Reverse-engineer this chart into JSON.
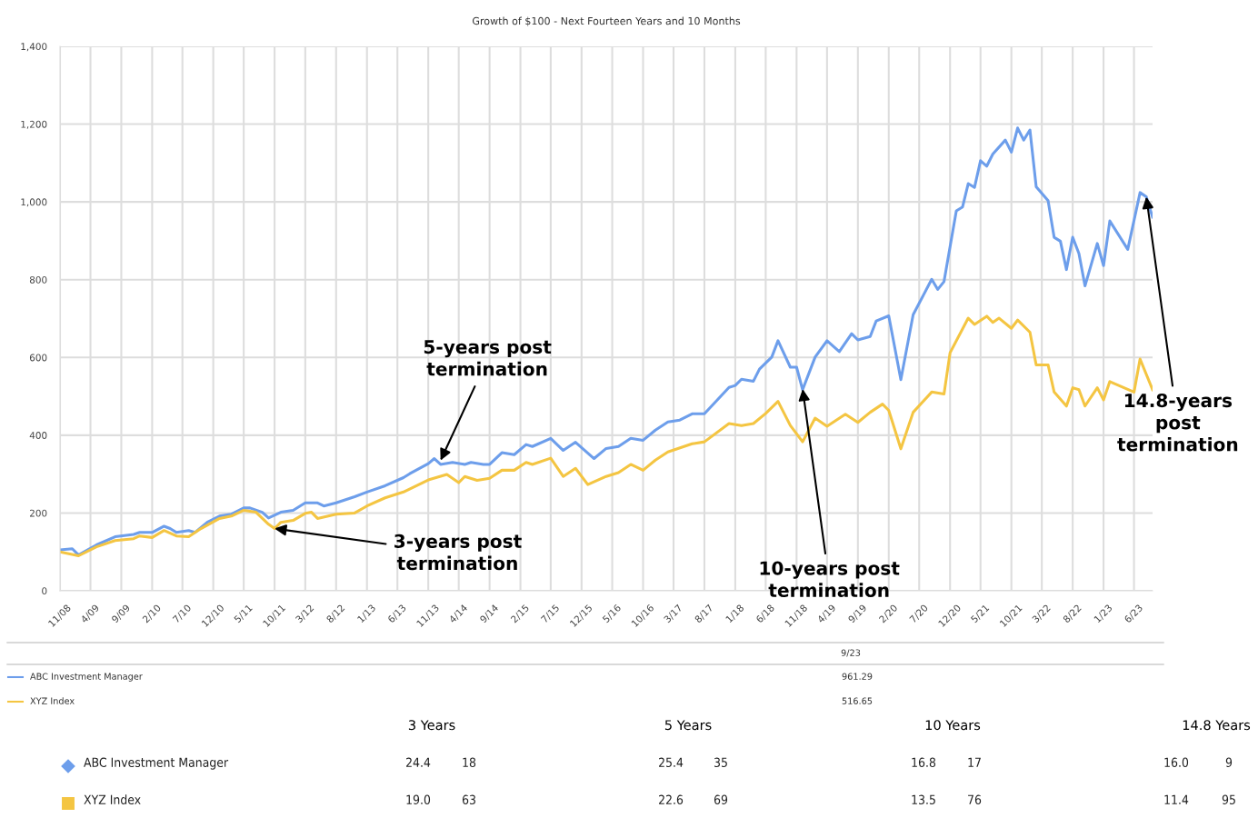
{
  "chart_data": {
    "type": "line",
    "title": "Growth of $100 - Next Fourteen Years and 10 Months",
    "series": [
      {
        "name": "ABC Investment Manager",
        "color": "#6d9eeb",
        "x": [
          "2008-11",
          "2009-01",
          "2009-02",
          "2009-05",
          "2009-08",
          "2009-11",
          "2009-12",
          "2010-02",
          "2010-04",
          "2010-05",
          "2010-06",
          "2010-08",
          "2010-09",
          "2010-11",
          "2011-01",
          "2011-03",
          "2011-05",
          "2011-06",
          "2011-08",
          "2011-09",
          "2011-11",
          "2012-01",
          "2012-03",
          "2012-05",
          "2012-06",
          "2012-08",
          "2012-11",
          "2013-01",
          "2013-04",
          "2013-07",
          "2013-08",
          "2013-11",
          "2013-12",
          "2014-01",
          "2014-03",
          "2014-05",
          "2014-06",
          "2014-08",
          "2014-09",
          "2014-11",
          "2015-01",
          "2015-03",
          "2015-04",
          "2015-07",
          "2015-09",
          "2015-11",
          "2016-02",
          "2016-04",
          "2016-06",
          "2016-08",
          "2016-10",
          "2016-12",
          "2017-02",
          "2017-04",
          "2017-06",
          "2017-08",
          "2017-12",
          "2018-01",
          "2018-02",
          "2018-04",
          "2018-05",
          "2018-07",
          "2018-08",
          "2018-10",
          "2018-11",
          "2018-12",
          "2019-02",
          "2019-04",
          "2019-06",
          "2019-08",
          "2019-09",
          "2019-11",
          "2019-12",
          "2020-02",
          "2020-04",
          "2020-06",
          "2020-09",
          "2020-10",
          "2020-11",
          "2021-01",
          "2021-02",
          "2021-03",
          "2021-04",
          "2021-05",
          "2021-06",
          "2021-07",
          "2021-09",
          "2021-10",
          "2021-11",
          "2021-12",
          "2022-01",
          "2022-02",
          "2022-04",
          "2022-05",
          "2022-06",
          "2022-07",
          "2022-08",
          "2022-09",
          "2022-10",
          "2022-12",
          "2023-01",
          "2023-02",
          "2023-05",
          "2023-07",
          "2023-08",
          "2023-09"
        ],
        "values": [
          105,
          108,
          92,
          118,
          139,
          145,
          150,
          150,
          166,
          160,
          150,
          155,
          150,
          176,
          192,
          197,
          213,
          213,
          202,
          187,
          202,
          207,
          226,
          226,
          218,
          226,
          242,
          254,
          270,
          291,
          301,
          327,
          340,
          325,
          330,
          325,
          330,
          325,
          325,
          355,
          350,
          376,
          371,
          392,
          361,
          382,
          340,
          366,
          371,
          392,
          387,
          413,
          434,
          439,
          455,
          455,
          523,
          528,
          544,
          539,
          570,
          601,
          643,
          575,
          575,
          517,
          601,
          643,
          615,
          661,
          645,
          654,
          694,
          707,
          543,
          710,
          801,
          775,
          795,
          977,
          987,
          1047,
          1037,
          1106,
          1092,
          1123,
          1159,
          1128,
          1190,
          1159,
          1185,
          1039,
          1003,
          909,
          899,
          826,
          909,
          867,
          784,
          893,
          836,
          951,
          878,
          1024,
          1013,
          961
        ],
        "value_labels": [
          null,
          null,
          null,
          null,
          null,
          null,
          null,
          null,
          null,
          null,
          null,
          null,
          null,
          null,
          null,
          null,
          null,
          null,
          null,
          null,
          null,
          null,
          null,
          null,
          null,
          null,
          null,
          null,
          null,
          null,
          null,
          null,
          null,
          null,
          null,
          null,
          null,
          null,
          null,
          null,
          null,
          null,
          null,
          null,
          null,
          null,
          null,
          null,
          null,
          null,
          null,
          null,
          null,
          null,
          null,
          null,
          null,
          null,
          null,
          null,
          null,
          null,
          null,
          null,
          null,
          null,
          null,
          null,
          null,
          null,
          null,
          null,
          null,
          null,
          null,
          null,
          null,
          null,
          null,
          null,
          null,
          null,
          null,
          null,
          null,
          null,
          null,
          null,
          null,
          null,
          null,
          null,
          null,
          null,
          null,
          null,
          null,
          null,
          null,
          null,
          null,
          null,
          null,
          null,
          null,
          null
        ]
      },
      {
        "name": "XYZ Index",
        "color": "#f4c542",
        "x": [
          "2008-11",
          "2009-02",
          "2009-05",
          "2009-08",
          "2009-11",
          "2009-12",
          "2010-02",
          "2010-04",
          "2010-06",
          "2010-08",
          "2010-10",
          "2011-01",
          "2011-03",
          "2011-05",
          "2011-07",
          "2011-09",
          "2011-10",
          "2011-11",
          "2012-01",
          "2012-03",
          "2012-04",
          "2012-05",
          "2012-08",
          "2012-11",
          "2013-01",
          "2013-04",
          "2013-07",
          "2013-11",
          "2014-02",
          "2014-04",
          "2014-05",
          "2014-07",
          "2014-09",
          "2014-11",
          "2015-01",
          "2015-03",
          "2015-04",
          "2015-07",
          "2015-09",
          "2015-11",
          "2016-01",
          "2016-04",
          "2016-06",
          "2016-08",
          "2016-10",
          "2016-12",
          "2017-02",
          "2017-06",
          "2017-08",
          "2017-12",
          "2018-02",
          "2018-04",
          "2018-06",
          "2018-08",
          "2018-10",
          "2018-12",
          "2019-02",
          "2019-04",
          "2019-07",
          "2019-09",
          "2019-11",
          "2020-01",
          "2020-02",
          "2020-04",
          "2020-06",
          "2020-09",
          "2020-11",
          "2020-12",
          "2021-03",
          "2021-04",
          "2021-06",
          "2021-07",
          "2021-08",
          "2021-10",
          "2021-11",
          "2022-01",
          "2022-02",
          "2022-04",
          "2022-05",
          "2022-07",
          "2022-08",
          "2022-09",
          "2022-10",
          "2022-12",
          "2023-01",
          "2023-02",
          "2023-06",
          "2023-07",
          "2023-09"
        ],
        "values": [
          100,
          90,
          113,
          129,
          134,
          141,
          137,
          155,
          141,
          139,
          160,
          186,
          192,
          207,
          202,
          171,
          160,
          176,
          181,
          199,
          202,
          186,
          197,
          200,
          218,
          239,
          254,
          285,
          299,
          278,
          294,
          284,
          289,
          310,
          310,
          330,
          325,
          341,
          294,
          315,
          273,
          294,
          304,
          325,
          310,
          336,
          357,
          378,
          383,
          430,
          425,
          430,
          456,
          487,
          425,
          383,
          444,
          423,
          454,
          433,
          459,
          480,
          464,
          365,
          459,
          511,
          506,
          612,
          701,
          685,
          706,
          690,
          701,
          675,
          696,
          665,
          581,
          581,
          511,
          475,
          522,
          517,
          475,
          522,
          491,
          538,
          511,
          596,
          517
        ],
        "value_labels": [
          null,
          null,
          null,
          null,
          null,
          null,
          null,
          null,
          null,
          null,
          null,
          null,
          null,
          null,
          null,
          null,
          null,
          null,
          null,
          null,
          null,
          null,
          null,
          null,
          null,
          null,
          null,
          null,
          null,
          null,
          null,
          null,
          null,
          null,
          null,
          null,
          null,
          null,
          null,
          null,
          null,
          null,
          null,
          null,
          null,
          null,
          null,
          null,
          null,
          null,
          null,
          null,
          null,
          null,
          null,
          null,
          null,
          null,
          null,
          null,
          null,
          null,
          null,
          null,
          null,
          null,
          null,
          null,
          null,
          null,
          null,
          null,
          null,
          null,
          null,
          null,
          null,
          null,
          null,
          null,
          null,
          null,
          null,
          null,
          null,
          null,
          null,
          null,
          null
        ]
      }
    ],
    "xlim": [
      "2008-11",
      "2023-09"
    ],
    "xticks": [
      {
        "value": "2008-11",
        "label": "11/08"
      },
      {
        "value": "2009-04",
        "label": "4/09"
      },
      {
        "value": "2009-09",
        "label": "9/09"
      },
      {
        "value": "2010-02",
        "label": "2/10"
      },
      {
        "value": "2010-07",
        "label": "7/10"
      },
      {
        "value": "2010-12",
        "label": "12/10"
      },
      {
        "value": "2011-05",
        "label": "5/11"
      },
      {
        "value": "2011-10",
        "label": "10/11"
      },
      {
        "value": "2012-03",
        "label": "3/12"
      },
      {
        "value": "2012-08",
        "label": "8/12"
      },
      {
        "value": "2013-01",
        "label": "1/13"
      },
      {
        "value": "2013-06",
        "label": "6/13"
      },
      {
        "value": "2013-11",
        "label": "11/13"
      },
      {
        "value": "2014-04",
        "label": "4/14"
      },
      {
        "value": "2014-09",
        "label": "9/14"
      },
      {
        "value": "2015-02",
        "label": "2/15"
      },
      {
        "value": "2015-07",
        "label": "7/15"
      },
      {
        "value": "2015-12",
        "label": "12/15"
      },
      {
        "value": "2016-05",
        "label": "5/16"
      },
      {
        "value": "2016-10",
        "label": "10/16"
      },
      {
        "value": "2017-03",
        "label": "3/17"
      },
      {
        "value": "2017-08",
        "label": "8/17"
      },
      {
        "value": "2018-01",
        "label": "1/18"
      },
      {
        "value": "2018-06",
        "label": "6/18"
      },
      {
        "value": "2018-11",
        "label": "11/18"
      },
      {
        "value": "2019-04",
        "label": "4/19"
      },
      {
        "value": "2019-09",
        "label": "9/19"
      },
      {
        "value": "2020-02",
        "label": "2/20"
      },
      {
        "value": "2020-07",
        "label": "7/20"
      },
      {
        "value": "2020-12",
        "label": "12/20"
      },
      {
        "value": "2021-05",
        "label": "5/21"
      },
      {
        "value": "2021-10",
        "label": "10/21"
      },
      {
        "value": "2022-03",
        "label": "3/22"
      },
      {
        "value": "2022-08",
        "label": "8/22"
      },
      {
        "value": "2023-01",
        "label": "1/23"
      },
      {
        "value": "2023-06",
        "label": "6/23"
      }
    ],
    "ylim": [
      0,
      1400
    ],
    "yticks": [
      0,
      200,
      400,
      600,
      800,
      {
        "value": 1000,
        "label": "1,000"
      },
      {
        "value": 1200,
        "label": "1,200"
      },
      {
        "value": 1400,
        "label": "1,400"
      }
    ],
    "grid": true,
    "legend": "bottom",
    "annotations": [
      {
        "text": "3-years post\ntermination",
        "x": "2011-10",
        "y": 160
      },
      {
        "text": "5-years post\ntermination",
        "x": "2014-01",
        "y": 335
      },
      {
        "text": "10-years post\ntermination",
        "x": "2018-12",
        "y": 519
      },
      {
        "text": "14.8-years\npost\ntermination",
        "x": "2023-08",
        "y": 1013
      },
      "9/23",
      "961.29",
      "516.65",
      "3 Years",
      "5 Years",
      "10 Years",
      "14.8 Years",
      "ABC Investment Manager",
      "24.4",
      "18",
      "25.4",
      "35",
      "16.8",
      "17",
      "16.0",
      "9",
      "XYZ Index",
      "19.0",
      "63",
      "22.6",
      "69",
      "13.5",
      "76",
      "11.4",
      "95"
    ]
  }
}
